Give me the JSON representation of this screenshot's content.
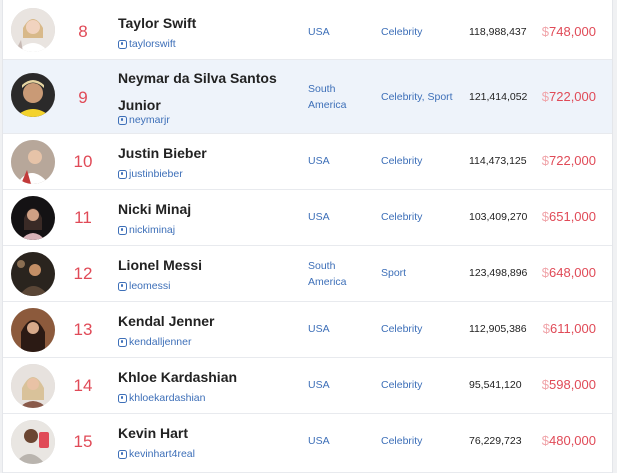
{
  "rows": [
    {
      "rank": "8",
      "name": "Taylor Swift",
      "handle": "taylorswift",
      "country": "USA",
      "category": "Celebrity",
      "followers": "118,988,437",
      "currency": "$",
      "price": "748,000"
    },
    {
      "rank": "9",
      "name": "Neymar da Silva Santos Junior",
      "handle": "neymarjr",
      "country": "South America",
      "category": "Celebrity, Sport",
      "followers": "121,414,052",
      "currency": "$",
      "price": "722,000"
    },
    {
      "rank": "10",
      "name": "Justin Bieber",
      "handle": "justinbieber",
      "country": "USA",
      "category": "Celebrity",
      "followers": "114,473,125",
      "currency": "$",
      "price": "722,000"
    },
    {
      "rank": "11",
      "name": "Nicki Minaj",
      "handle": "nickiminaj",
      "country": "USA",
      "category": "Celebrity",
      "followers": "103,409,270",
      "currency": "$",
      "price": "651,000"
    },
    {
      "rank": "12",
      "name": "Lionel Messi",
      "handle": "leomessi",
      "country": "South America",
      "category": "Sport",
      "followers": "123,498,896",
      "currency": "$",
      "price": "648,000"
    },
    {
      "rank": "13",
      "name": "Kendal Jenner",
      "handle": "kendalljenner",
      "country": "USA",
      "category": "Celebrity",
      "followers": "112,905,386",
      "currency": "$",
      "price": "611,000"
    },
    {
      "rank": "14",
      "name": "Khloe Kardashian",
      "handle": "khloekardashian",
      "country": "USA",
      "category": "Celebrity",
      "followers": "95,541,120",
      "currency": "$",
      "price": "598,000"
    },
    {
      "rank": "15",
      "name": "Kevin Hart",
      "handle": "kevinhart4real",
      "country": "USA",
      "category": "Celebrity",
      "followers": "76,229,723",
      "currency": "$",
      "price": "480,000"
    }
  ],
  "icons": {
    "handle": "instagram-icon",
    "avatar": "profile-photo"
  },
  "colors": {
    "rank": "#e04a57",
    "price": "#e04a57",
    "link": "#3d6fb8",
    "highlight_row": "#eef3fa"
  }
}
